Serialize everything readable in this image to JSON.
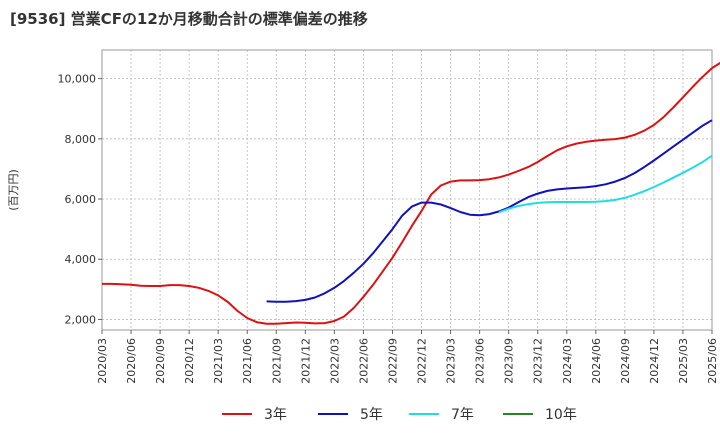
{
  "chart_data": {
    "type": "line",
    "title": "[9536]  営業CFの12か月移動合計の標準偏差の推移",
    "ylabel": "(百万円)",
    "xlabel": "",
    "x_ticks": [
      "2020/03",
      "2020/06",
      "2020/09",
      "2020/12",
      "2021/03",
      "2021/06",
      "2021/09",
      "2021/12",
      "2022/03",
      "2022/06",
      "2022/09",
      "2022/12",
      "2023/03",
      "2023/06",
      "2023/09",
      "2023/12",
      "2024/03",
      "2024/06",
      "2024/09",
      "2024/12",
      "2025/03",
      "2025/06"
    ],
    "y_ticks": [
      2000,
      4000,
      6000,
      8000,
      10000
    ],
    "y_tick_labels": [
      "2,000",
      "4,000",
      "6,000",
      "8,000",
      "10,000"
    ],
    "ylim": [
      1650,
      10950
    ],
    "grid": true,
    "legend_position": "bottom",
    "series": [
      {
        "name": "3年",
        "color": "#dd1111",
        "start": "2020/03",
        "values": [
          3180,
          3180,
          3170,
          3150,
          3120,
          3110,
          3110,
          3140,
          3140,
          3110,
          3050,
          2950,
          2800,
          2580,
          2280,
          2050,
          1910,
          1860,
          1860,
          1880,
          1900,
          1890,
          1870,
          1880,
          1950,
          2100,
          2380,
          2750,
          3150,
          3600,
          4050,
          4570,
          5100,
          5600,
          6150,
          6450,
          6580,
          6620,
          6620,
          6630,
          6660,
          6720,
          6810,
          6930,
          7060,
          7230,
          7430,
          7620,
          7750,
          7840,
          7900,
          7940,
          7970,
          7990,
          8040,
          8130,
          8270,
          8460,
          8720,
          9040,
          9380,
          9720,
          10050,
          10350,
          10550,
          10670
        ]
      },
      {
        "name": "5年",
        "color": "#1111bb",
        "start": "2021/08",
        "values": [
          2600,
          2590,
          2590,
          2610,
          2650,
          2730,
          2870,
          3050,
          3280,
          3550,
          3850,
          4200,
          4600,
          5000,
          5450,
          5750,
          5880,
          5880,
          5820,
          5700,
          5570,
          5480,
          5460,
          5500,
          5590,
          5720,
          5890,
          6060,
          6180,
          6270,
          6320,
          6350,
          6370,
          6390,
          6430,
          6490,
          6580,
          6700,
          6860,
          7060,
          7280,
          7510,
          7740,
          7970,
          8200,
          8430,
          8620
        ]
      },
      {
        "name": "7年",
        "color": "#22dddd",
        "start": "2023/08",
        "values": [
          5560,
          5680,
          5770,
          5830,
          5870,
          5890,
          5900,
          5900,
          5900,
          5900,
          5910,
          5930,
          5970,
          6040,
          6140,
          6260,
          6400,
          6550,
          6710,
          6870,
          7040,
          7220,
          7440
        ]
      },
      {
        "name": "10年",
        "color": "#228822",
        "start": "",
        "values": []
      }
    ]
  }
}
